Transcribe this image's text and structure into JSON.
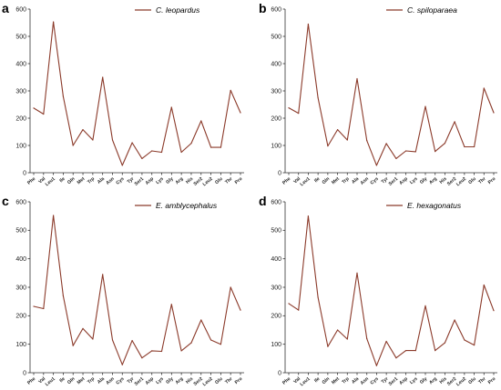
{
  "chart_data": [
    {
      "type": "line",
      "panel": "a",
      "categories": [
        "Phe",
        "Val",
        "Leu1",
        "Ile",
        "Gln",
        "Met",
        "Trp",
        "Ala",
        "Asn",
        "Cys",
        "Tyr",
        "Ser1",
        "Asp",
        "Lys",
        "Gly",
        "Arg",
        "His",
        "Ser2",
        "Leu2",
        "Glu",
        "Thr",
        "Pro"
      ],
      "series": [
        {
          "name": "C. leopardus",
          "values": [
            237,
            215,
            553,
            280,
            100,
            158,
            120,
            350,
            120,
            27,
            110,
            52,
            80,
            75,
            240,
            75,
            108,
            190,
            93,
            93,
            302,
            220
          ]
        }
      ],
      "ylim": [
        0,
        600
      ],
      "yticks": [
        "0",
        "100",
        "200",
        "300",
        "400",
        "500",
        "600"
      ],
      "legend": "top-right",
      "grid": false
    },
    {
      "type": "line",
      "panel": "b",
      "categories": [
        "Phe",
        "Val",
        "Leu1",
        "Ile",
        "Gln",
        "Met",
        "Trp",
        "Ala",
        "Asn",
        "Cys",
        "Tyr",
        "Ser1",
        "Asp",
        "Lys",
        "Gly",
        "Arg",
        "His",
        "Ser2",
        "Leu2",
        "Glu",
        "Thr",
        "Pro"
      ],
      "series": [
        {
          "name": "C. spiloparaea",
          "values": [
            238,
            218,
            545,
            275,
            98,
            158,
            120,
            345,
            118,
            27,
            107,
            52,
            80,
            77,
            243,
            78,
            108,
            187,
            95,
            95,
            310,
            220
          ]
        }
      ],
      "ylim": [
        0,
        600
      ],
      "yticks": [
        "0",
        "100",
        "200",
        "300",
        "400",
        "500",
        "600"
      ],
      "legend": "top-right",
      "grid": false
    },
    {
      "type": "line",
      "panel": "c",
      "categories": [
        "Phe",
        "Val",
        "Leu1",
        "Ile",
        "Gln",
        "Met",
        "Trp",
        "Ala",
        "Asn",
        "Cys",
        "Tyr",
        "Ser1",
        "Asp",
        "Lys",
        "Gly",
        "Arg",
        "His",
        "Ser2",
        "Leu2",
        "Glu",
        "Thr",
        "Pro"
      ],
      "series": [
        {
          "name": "E. amblycephalus",
          "values": [
            233,
            225,
            552,
            270,
            95,
            155,
            118,
            345,
            115,
            28,
            113,
            52,
            77,
            75,
            240,
            77,
            105,
            185,
            115,
            100,
            300,
            220
          ]
        }
      ],
      "ylim": [
        0,
        600
      ],
      "yticks": [
        "0",
        "100",
        "200",
        "300",
        "400",
        "500",
        "600"
      ],
      "legend": "top-right",
      "grid": false
    },
    {
      "type": "line",
      "panel": "d",
      "categories": [
        "Phe",
        "Val",
        "Leu1",
        "Ile",
        "Gln",
        "Met",
        "Trp",
        "Ala",
        "Asn",
        "Cys",
        "Tyr",
        "Ser1",
        "Asp",
        "Lys",
        "Gly",
        "Arg",
        "His",
        "Ser2",
        "Leu2",
        "Glu",
        "Thr",
        "Pro"
      ],
      "series": [
        {
          "name": "E. hexagonatus",
          "values": [
            243,
            220,
            550,
            265,
            92,
            150,
            118,
            350,
            120,
            25,
            110,
            52,
            78,
            78,
            235,
            78,
            105,
            185,
            115,
            97,
            308,
            218
          ]
        }
      ],
      "ylim": [
        0,
        600
      ],
      "yticks": [
        "0",
        "100",
        "200",
        "300",
        "400",
        "500",
        "600"
      ],
      "legend": "top-right",
      "grid": false
    }
  ],
  "colors": {
    "series": "#8B3A2A",
    "axis": "#333333"
  }
}
